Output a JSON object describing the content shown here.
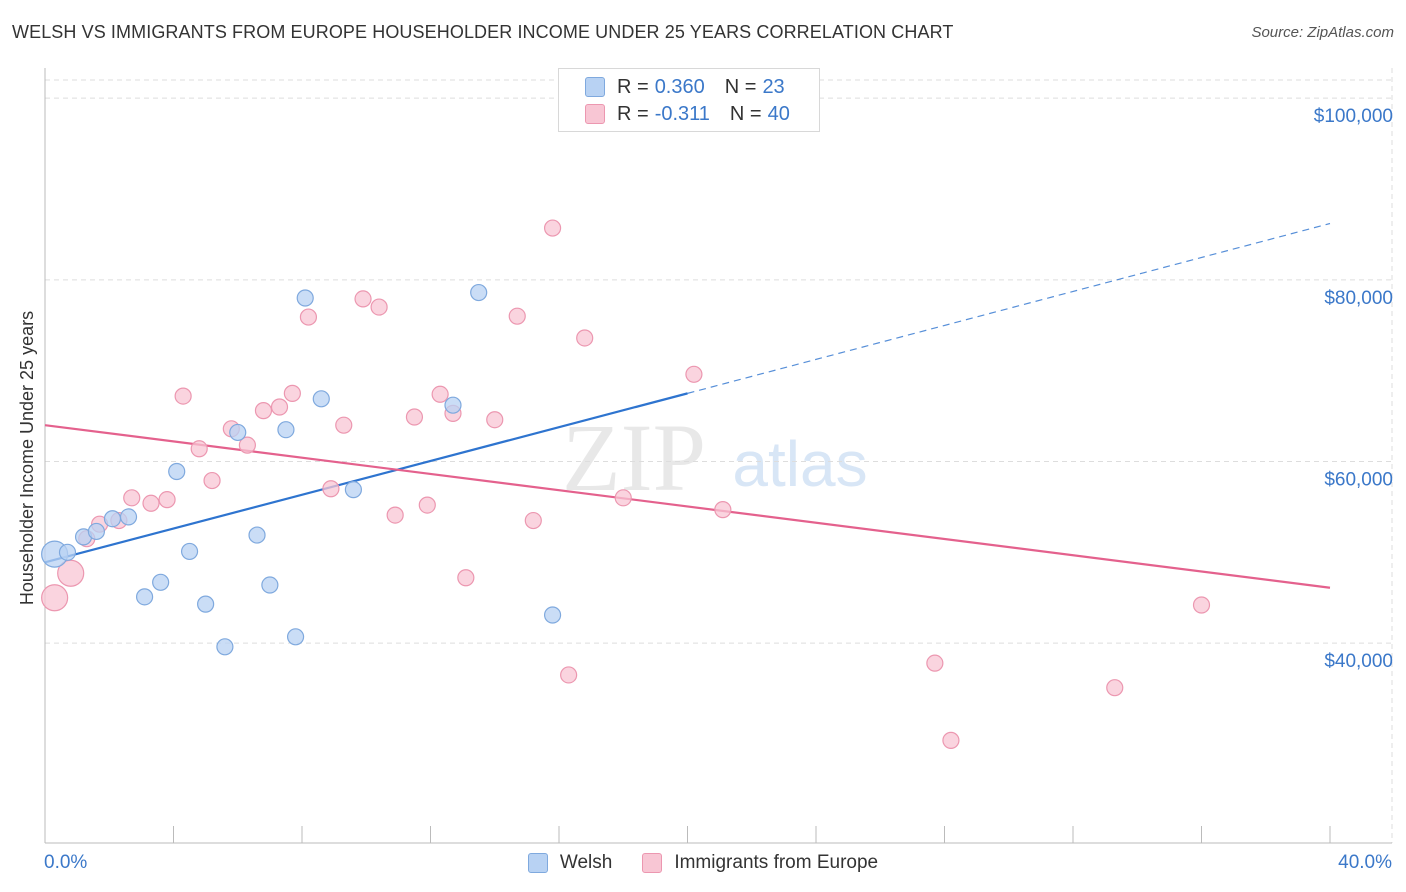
{
  "title": "WELSH VS IMMIGRANTS FROM EUROPE HOUSEHOLDER INCOME UNDER 25 YEARS CORRELATION CHART",
  "source": "Source: ZipAtlas.com",
  "watermark": {
    "zip": "ZIP",
    "atlas": "atlas"
  },
  "legend": {
    "welsh": {
      "r_label": "R =",
      "r_value": "0.360",
      "n_label": "N =",
      "n_value": "23"
    },
    "europe": {
      "r_label": "R =",
      "r_value": "-0.311",
      "n_label": "N =",
      "n_value": "40"
    }
  },
  "colors": {
    "welsh_fill": "#b8d2f3",
    "welsh_stroke": "#7fa9de",
    "welsh_line": "#2e74cf",
    "europe_fill": "#f8c6d4",
    "europe_stroke": "#ec97b0",
    "europe_line": "#e4618d",
    "axis_text": "#3b78c9",
    "grid": "#dddddd"
  },
  "chart_data": {
    "type": "scatter",
    "title": "WELSH VS IMMIGRANTS FROM EUROPE HOUSEHOLDER INCOME UNDER 25 YEARS CORRELATION CHART",
    "xlabel": "",
    "ylabel": "Householder Income Under 25 years",
    "xlim": [
      0,
      40
    ],
    "ylim": [
      18000,
      102000
    ],
    "x_tick_labels": [
      "0.0%",
      "40.0%"
    ],
    "y_ticks": [
      {
        "value": 40000,
        "label": "$40,000"
      },
      {
        "value": 60000,
        "label": "$60,000"
      },
      {
        "value": 80000,
        "label": "$80,000"
      },
      {
        "value": 100000,
        "label": "$100,000"
      }
    ],
    "series": [
      {
        "name": "Welsh",
        "points": [
          {
            "x": 0.3,
            "y": 49800,
            "size": "large"
          },
          {
            "x": 0.7,
            "y": 50000
          },
          {
            "x": 1.2,
            "y": 51700
          },
          {
            "x": 1.6,
            "y": 52300
          },
          {
            "x": 2.1,
            "y": 53700
          },
          {
            "x": 2.6,
            "y": 53900
          },
          {
            "x": 3.1,
            "y": 45100
          },
          {
            "x": 3.6,
            "y": 46700
          },
          {
            "x": 4.1,
            "y": 58900
          },
          {
            "x": 4.5,
            "y": 50100
          },
          {
            "x": 5.0,
            "y": 44300
          },
          {
            "x": 5.6,
            "y": 39600
          },
          {
            "x": 6.0,
            "y": 63200
          },
          {
            "x": 6.6,
            "y": 51900
          },
          {
            "x": 7.0,
            "y": 46400
          },
          {
            "x": 7.5,
            "y": 63500
          },
          {
            "x": 7.8,
            "y": 40700
          },
          {
            "x": 8.1,
            "y": 78000
          },
          {
            "x": 8.6,
            "y": 66900
          },
          {
            "x": 9.6,
            "y": 56900
          },
          {
            "x": 12.7,
            "y": 66200
          },
          {
            "x": 13.5,
            "y": 78600
          },
          {
            "x": 15.8,
            "y": 43100
          }
        ],
        "trend": {
          "x0": 0,
          "y0": 48900,
          "x1": 20,
          "y1": 67500,
          "dashed_to_x": 40,
          "dashed_to_y": 86200
        }
      },
      {
        "name": "Immigrants from Europe",
        "points": [
          {
            "x": 0.3,
            "y": 45000,
            "size": "large"
          },
          {
            "x": 0.8,
            "y": 47700,
            "size": "large"
          },
          {
            "x": 1.3,
            "y": 51500
          },
          {
            "x": 1.7,
            "y": 53100
          },
          {
            "x": 2.3,
            "y": 53500
          },
          {
            "x": 2.7,
            "y": 56000
          },
          {
            "x": 3.3,
            "y": 55400
          },
          {
            "x": 3.8,
            "y": 55800
          },
          {
            "x": 4.3,
            "y": 67200
          },
          {
            "x": 4.8,
            "y": 61400
          },
          {
            "x": 5.2,
            "y": 57900
          },
          {
            "x": 5.8,
            "y": 63600
          },
          {
            "x": 6.3,
            "y": 61800
          },
          {
            "x": 6.8,
            "y": 65600
          },
          {
            "x": 7.3,
            "y": 66000
          },
          {
            "x": 7.7,
            "y": 67500
          },
          {
            "x": 8.2,
            "y": 75900
          },
          {
            "x": 8.9,
            "y": 57000
          },
          {
            "x": 9.3,
            "y": 64000
          },
          {
            "x": 9.9,
            "y": 77900
          },
          {
            "x": 10.4,
            "y": 77000
          },
          {
            "x": 10.9,
            "y": 54100
          },
          {
            "x": 11.5,
            "y": 64900
          },
          {
            "x": 11.9,
            "y": 55200
          },
          {
            "x": 12.3,
            "y": 67400
          },
          {
            "x": 12.7,
            "y": 65300
          },
          {
            "x": 13.1,
            "y": 47200
          },
          {
            "x": 14.0,
            "y": 64600
          },
          {
            "x": 14.7,
            "y": 76000
          },
          {
            "x": 15.2,
            "y": 53500
          },
          {
            "x": 15.8,
            "y": 85700
          },
          {
            "x": 16.3,
            "y": 36500
          },
          {
            "x": 16.8,
            "y": 73600
          },
          {
            "x": 18.0,
            "y": 56000
          },
          {
            "x": 20.2,
            "y": 69600
          },
          {
            "x": 21.1,
            "y": 54700
          },
          {
            "x": 27.7,
            "y": 37800
          },
          {
            "x": 28.2,
            "y": 29300
          },
          {
            "x": 33.3,
            "y": 35100
          },
          {
            "x": 36.0,
            "y": 44200
          }
        ],
        "trend": {
          "x0": 0,
          "y0": 64000,
          "x1": 40,
          "y1": 46100
        }
      }
    ]
  },
  "bottom_legend": [
    "Welsh",
    "Immigrants from Europe"
  ]
}
